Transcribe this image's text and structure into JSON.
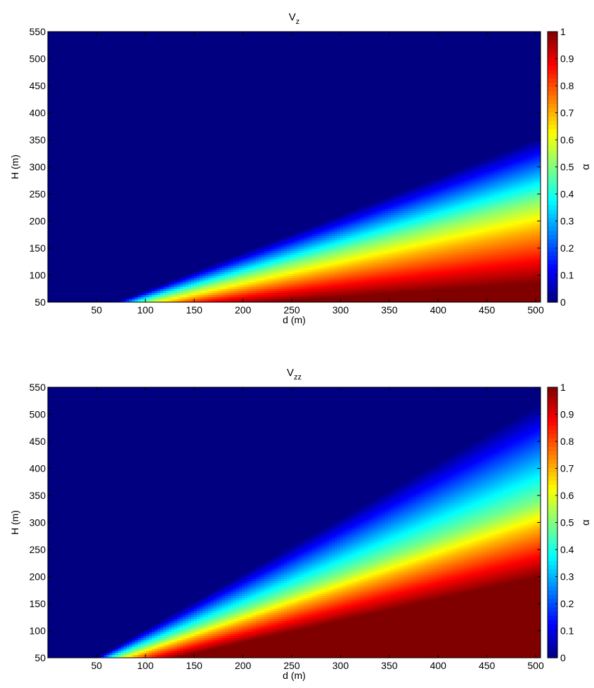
{
  "chart_data": [
    {
      "type": "heatmap",
      "title": "V",
      "title_subscript": "z",
      "xlabel": "d (m)",
      "ylabel": "H (m)",
      "xlim": [
        0,
        505
      ],
      "ylim": [
        50,
        550
      ],
      "xticks": [
        "50",
        "100",
        "150",
        "200",
        "250",
        "300",
        "350",
        "400",
        "450",
        "500"
      ],
      "yticks": [
        "50",
        "100",
        "150",
        "200",
        "250",
        "300",
        "350",
        "400",
        "450",
        "500",
        "550"
      ],
      "colorbar": {
        "label": "α",
        "range": [
          0,
          1
        ],
        "ticks": [
          "0",
          "0.1",
          "0.2",
          "0.3",
          "0.4",
          "0.5",
          "0.6",
          "0.7",
          "0.8",
          "0.9",
          "1"
        ],
        "colormap": "jet"
      },
      "boundary_alpha_0": [
        [
          70,
          50
        ],
        [
          505,
          355
        ]
      ],
      "contours": [
        {
          "alpha": 0.5,
          "points": [
            [
              98,
              50
            ],
            [
              505,
              240
            ]
          ]
        },
        {
          "alpha": 0.7,
          "points": [
            [
              125,
              50
            ],
            [
              505,
              185
            ]
          ]
        },
        {
          "alpha": 1.0,
          "points": [
            [
              225,
              50
            ],
            [
              505,
              85
            ]
          ]
        }
      ],
      "grid": false
    },
    {
      "type": "heatmap",
      "title": "V",
      "title_subscript": "zz",
      "xlabel": "d (m)",
      "ylabel": "H (m)",
      "xlim": [
        0,
        505
      ],
      "ylim": [
        50,
        550
      ],
      "xticks": [
        "50",
        "100",
        "150",
        "200",
        "250",
        "300",
        "350",
        "400",
        "450",
        "500"
      ],
      "yticks": [
        "50",
        "100",
        "150",
        "200",
        "250",
        "300",
        "350",
        "400",
        "450",
        "500",
        "550"
      ],
      "colorbar": {
        "label": "α",
        "range": [
          0,
          1
        ],
        "ticks": [
          "0",
          "0.1",
          "0.2",
          "0.3",
          "0.4",
          "0.5",
          "0.6",
          "0.7",
          "0.8",
          "0.9",
          "1"
        ],
        "colormap": "jet"
      },
      "boundary_alpha_0": [
        [
          50,
          50
        ],
        [
          505,
          520
        ]
      ],
      "contours": [
        {
          "alpha": 0.5,
          "points": [
            [
              70,
              50
            ],
            [
              505,
              340
            ]
          ]
        },
        {
          "alpha": 0.7,
          "points": [
            [
              85,
              50
            ],
            [
              505,
              290
            ]
          ]
        },
        {
          "alpha": 1.0,
          "points": [
            [
              130,
              50
            ],
            [
              505,
              200
            ]
          ]
        }
      ],
      "grid": false
    }
  ]
}
